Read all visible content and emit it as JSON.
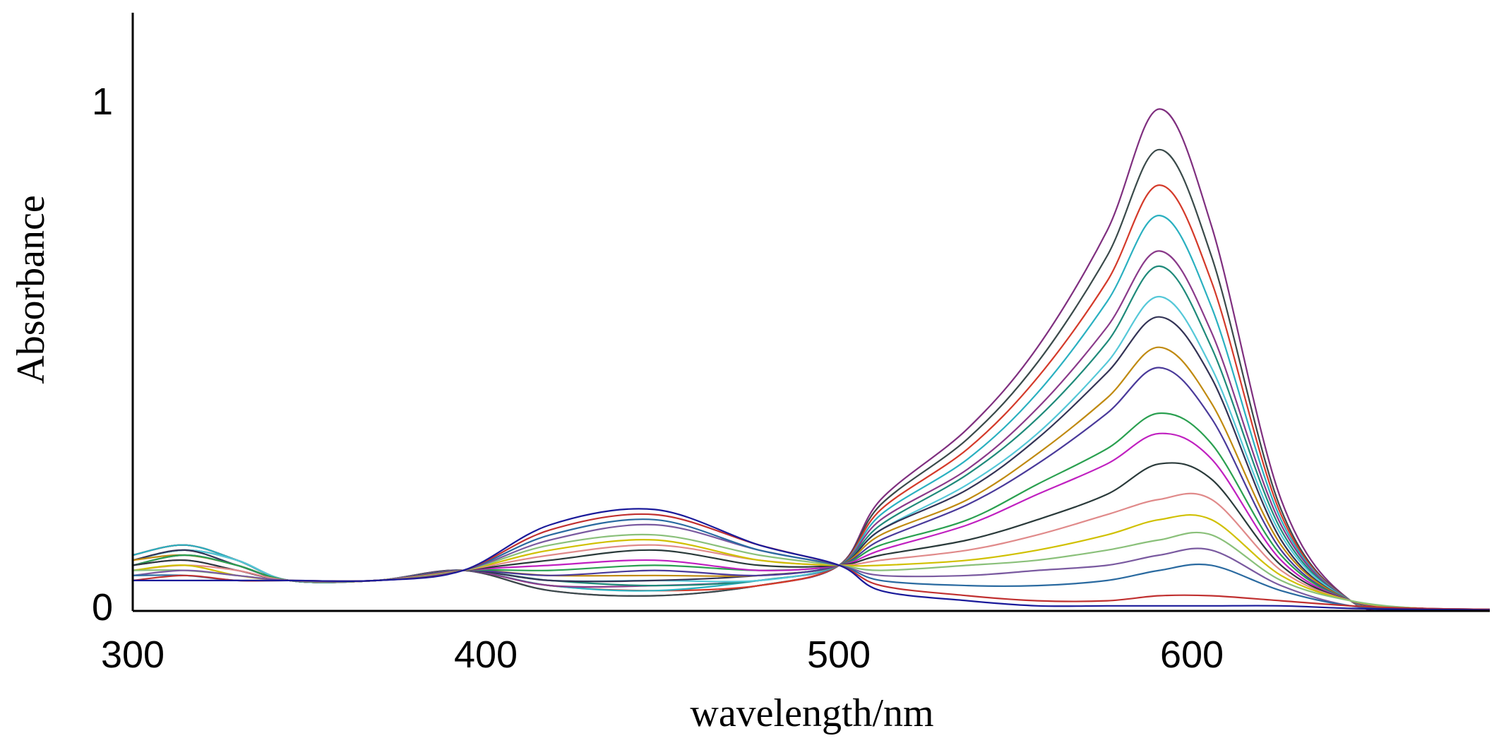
{
  "chart_data": {
    "type": "line",
    "xlabel": "wavelength/nm",
    "ylabel": "Absorbance",
    "xlim": [
      300,
      690
    ],
    "ylim": [
      0,
      1.18
    ],
    "x_ticks": [
      "300",
      "400",
      "500",
      "600"
    ],
    "y_ticks": [
      "0",
      "1"
    ],
    "grid": false,
    "legend": "none",
    "x": [
      300,
      315,
      330,
      345,
      370,
      395,
      420,
      450,
      480,
      503,
      515,
      540,
      560,
      580,
      595,
      610,
      630,
      650,
      670,
      690
    ],
    "series": [
      {
        "color": "#7f2f7f",
        "values": [
          0.11,
          0.13,
          0.1,
          0.06,
          0.06,
          0.08,
          0.04,
          0.03,
          0.05,
          0.09,
          0.22,
          0.36,
          0.52,
          0.75,
          0.99,
          0.76,
          0.22,
          0.02,
          0.005,
          0.003
        ]
      },
      {
        "color": "#3a4a4a",
        "values": [
          0.11,
          0.13,
          0.1,
          0.06,
          0.06,
          0.08,
          0.04,
          0.03,
          0.05,
          0.09,
          0.21,
          0.34,
          0.49,
          0.7,
          0.91,
          0.7,
          0.2,
          0.02,
          0.005,
          0.003
        ]
      },
      {
        "color": "#d43a2a",
        "values": [
          0.11,
          0.13,
          0.1,
          0.06,
          0.06,
          0.08,
          0.05,
          0.04,
          0.05,
          0.09,
          0.2,
          0.32,
          0.46,
          0.65,
          0.84,
          0.65,
          0.19,
          0.02,
          0.005,
          0.003
        ]
      },
      {
        "color": "#2ab0c0",
        "values": [
          0.11,
          0.13,
          0.1,
          0.06,
          0.06,
          0.08,
          0.05,
          0.04,
          0.06,
          0.09,
          0.19,
          0.3,
          0.43,
          0.61,
          0.78,
          0.6,
          0.18,
          0.02,
          0.005,
          0.003
        ]
      },
      {
        "color": "#8a3a8a",
        "values": [
          0.1,
          0.12,
          0.1,
          0.06,
          0.06,
          0.08,
          0.05,
          0.05,
          0.06,
          0.09,
          0.18,
          0.28,
          0.4,
          0.56,
          0.71,
          0.55,
          0.17,
          0.02,
          0.005,
          0.003
        ]
      },
      {
        "color": "#1f8a7a",
        "values": [
          0.1,
          0.12,
          0.1,
          0.06,
          0.06,
          0.08,
          0.06,
          0.05,
          0.06,
          0.09,
          0.17,
          0.27,
          0.38,
          0.53,
          0.68,
          0.52,
          0.16,
          0.02,
          0.005,
          0.003
        ]
      },
      {
        "color": "#55c8d8",
        "values": [
          0.1,
          0.12,
          0.1,
          0.06,
          0.06,
          0.08,
          0.06,
          0.06,
          0.06,
          0.09,
          0.16,
          0.25,
          0.35,
          0.49,
          0.62,
          0.48,
          0.15,
          0.02,
          0.005,
          0.003
        ]
      },
      {
        "color": "#333355",
        "values": [
          0.1,
          0.12,
          0.09,
          0.06,
          0.06,
          0.08,
          0.06,
          0.06,
          0.07,
          0.09,
          0.16,
          0.24,
          0.34,
          0.47,
          0.58,
          0.46,
          0.14,
          0.02,
          0.005,
          0.003
        ]
      },
      {
        "color": "#c08a10",
        "values": [
          0.1,
          0.11,
          0.09,
          0.06,
          0.06,
          0.08,
          0.07,
          0.07,
          0.07,
          0.09,
          0.15,
          0.22,
          0.31,
          0.42,
          0.52,
          0.41,
          0.13,
          0.02,
          0.005,
          0.003
        ]
      },
      {
        "color": "#4a3a9a",
        "values": [
          0.09,
          0.11,
          0.09,
          0.06,
          0.06,
          0.08,
          0.07,
          0.08,
          0.07,
          0.09,
          0.14,
          0.21,
          0.29,
          0.39,
          0.48,
          0.38,
          0.12,
          0.02,
          0.005,
          0.003
        ]
      },
      {
        "color": "#2aa050",
        "values": [
          0.09,
          0.11,
          0.09,
          0.06,
          0.06,
          0.08,
          0.08,
          0.09,
          0.08,
          0.09,
          0.13,
          0.18,
          0.25,
          0.32,
          0.39,
          0.33,
          0.11,
          0.02,
          0.005,
          0.003
        ]
      },
      {
        "color": "#c020c0",
        "values": [
          0.09,
          0.1,
          0.08,
          0.06,
          0.06,
          0.08,
          0.09,
          0.1,
          0.08,
          0.09,
          0.12,
          0.17,
          0.23,
          0.29,
          0.35,
          0.3,
          0.1,
          0.02,
          0.005,
          0.003
        ]
      },
      {
        "color": "#2a3a3a",
        "values": [
          0.09,
          0.1,
          0.08,
          0.06,
          0.06,
          0.08,
          0.1,
          0.12,
          0.09,
          0.09,
          0.11,
          0.14,
          0.18,
          0.23,
          0.29,
          0.26,
          0.09,
          0.02,
          0.005,
          0.003
        ]
      },
      {
        "color": "#e08a8a",
        "values": [
          0.08,
          0.09,
          0.08,
          0.06,
          0.06,
          0.08,
          0.11,
          0.13,
          0.1,
          0.09,
          0.1,
          0.12,
          0.15,
          0.19,
          0.22,
          0.22,
          0.08,
          0.02,
          0.005,
          0.003
        ]
      },
      {
        "color": "#d0c000",
        "values": [
          0.08,
          0.09,
          0.07,
          0.06,
          0.06,
          0.08,
          0.12,
          0.14,
          0.1,
          0.09,
          0.09,
          0.1,
          0.12,
          0.15,
          0.18,
          0.18,
          0.07,
          0.02,
          0.005,
          0.003
        ]
      },
      {
        "color": "#8ac07a",
        "values": [
          0.08,
          0.08,
          0.07,
          0.06,
          0.06,
          0.08,
          0.13,
          0.15,
          0.11,
          0.09,
          0.08,
          0.09,
          0.1,
          0.12,
          0.14,
          0.15,
          0.06,
          0.02,
          0.005,
          0.003
        ]
      },
      {
        "color": "#7a5aa0",
        "values": [
          0.07,
          0.08,
          0.07,
          0.06,
          0.06,
          0.08,
          0.14,
          0.17,
          0.12,
          0.09,
          0.07,
          0.07,
          0.08,
          0.09,
          0.11,
          0.12,
          0.05,
          0.01,
          0.005,
          0.003
        ]
      },
      {
        "color": "#2a6aa0",
        "values": [
          0.07,
          0.07,
          0.06,
          0.06,
          0.06,
          0.08,
          0.15,
          0.18,
          0.12,
          0.09,
          0.06,
          0.05,
          0.05,
          0.06,
          0.08,
          0.09,
          0.04,
          0.01,
          0.005,
          0.003
        ]
      },
      {
        "color": "#c03030",
        "values": [
          0.06,
          0.07,
          0.06,
          0.06,
          0.06,
          0.08,
          0.16,
          0.19,
          0.13,
          0.09,
          0.05,
          0.03,
          0.02,
          0.02,
          0.03,
          0.03,
          0.02,
          0.01,
          0.005,
          0.003
        ]
      },
      {
        "color": "#1a1a9a",
        "values": [
          0.06,
          0.06,
          0.06,
          0.06,
          0.06,
          0.08,
          0.17,
          0.2,
          0.13,
          0.09,
          0.04,
          0.02,
          0.01,
          0.01,
          0.01,
          0.01,
          0.01,
          0.005,
          0.003,
          0.002
        ]
      }
    ]
  }
}
